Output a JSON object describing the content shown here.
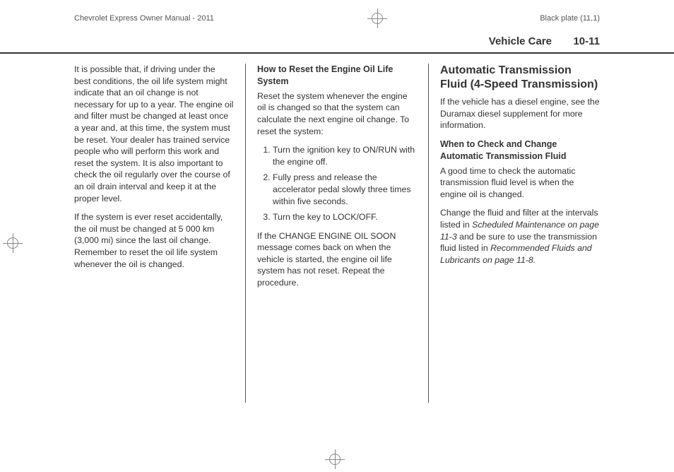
{
  "print": {
    "left_header": "Chevrolet Express Owner Manual - 2011",
    "right_header": "Black plate (11,1)"
  },
  "header": {
    "section": "Vehicle Care",
    "page": "10-11"
  },
  "col1": {
    "p1": "It is possible that, if driving under the best conditions, the oil life system might indicate that an oil change is not necessary for up to a year. The engine oil and filter must be changed at least once a year and, at this time, the system must be reset. Your dealer has trained service people who will perform this work and reset the system. It is also important to check the oil regularly over the course of an oil drain interval and keep it at the proper level.",
    "p2": "If the system is ever reset accidentally, the oil must be changed at 5 000 km (3,000 mi) since the last oil change. Remember to reset the oil life system whenever the oil is changed."
  },
  "col2": {
    "subhead": "How to Reset the Engine Oil Life System",
    "intro": "Reset the system whenever the engine oil is changed so that the system can calculate the next engine oil change. To reset the system:",
    "step1": "Turn the ignition key to ON/RUN with the engine off.",
    "step2": "Fully press and release the accelerator pedal slowly three times within five seconds.",
    "step3": "Turn the key to LOCK/OFF.",
    "outro": "If the CHANGE ENGINE OIL SOON message comes back on when the vehicle is started, the engine oil life system has not reset. Repeat the procedure."
  },
  "col3": {
    "h2": "Automatic Transmission Fluid (4-Speed Transmission)",
    "p1": "If the vehicle has a diesel engine, see the Duramax diesel supplement for more information.",
    "sub2": "When to Check and Change Automatic Transmission Fluid",
    "p2": "A good time to check the automatic transmission fluid level is when the engine oil is changed.",
    "p3a": "Change the fluid and filter at the intervals listed in ",
    "p3b": "Scheduled Maintenance on page 11-3",
    "p3c": " and be sure to use the transmission fluid listed in ",
    "p3d": "Recommended Fluids and Lubricants on page 11-8.",
    "p3e": ""
  }
}
